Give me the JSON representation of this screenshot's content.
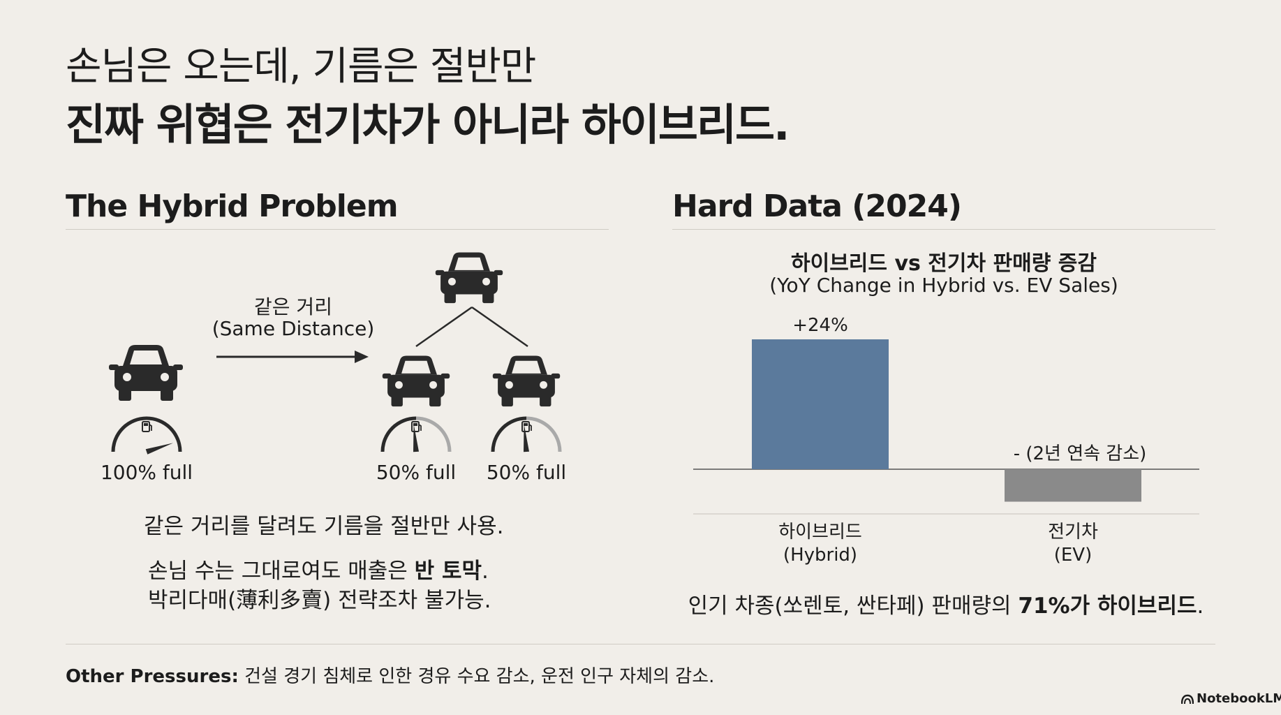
{
  "header": {
    "title_line1": "손님은 오는데, 기름은 절반만",
    "title_line2": "진짜 위협은 전기차가 아니라 하이브리드."
  },
  "left": {
    "heading": "The Hybrid Problem",
    "arrow_label_ko": "같은 거리",
    "arrow_label_en": "(Same Distance)",
    "gauges": [
      {
        "label": "100% full",
        "level": 1.0
      },
      {
        "label": "50% full",
        "level": 0.5
      },
      {
        "label": "50% full",
        "level": 0.5
      }
    ],
    "line1": "같은 거리를 달려도 기름을 절반만 사용.",
    "line2_pre": "손님 수는 그대로여도 매출은 ",
    "line2_bold": "반 토막",
    "line2_post": ".",
    "line3": "박리다매(薄利多賣) 전략조차 불가능."
  },
  "right": {
    "heading": "Hard Data (2024)",
    "note_pre": "인기 차종(쏘렌토, 싼타페) 판매량의 ",
    "note_bold": "71%가 하이브리드",
    "note_post": "."
  },
  "chart_data": {
    "type": "bar",
    "title": "하이브리드 vs 전기차 판매량 증감",
    "subtitle": "(YoY Change in Hybrid vs. EV Sales)",
    "categories": [
      "하이브리드\n(Hybrid)",
      "전기차\n(EV)"
    ],
    "category_ko": [
      "하이브리드",
      "전기차"
    ],
    "category_en": [
      "(Hybrid)",
      "(EV)"
    ],
    "values": [
      24,
      -6
    ],
    "data_labels": [
      "+24%",
      "- (2년 연속 감소)"
    ],
    "colors": [
      "#5b7a9c",
      "#8a8a8a"
    ],
    "ylim": [
      -8,
      26
    ]
  },
  "footer": {
    "label": "Other Pressures:",
    "text": " 건설 경기 침체로 인한 경유 수요 감소, 운전 인구 자체의 감소.",
    "brand": "NotebookLM"
  }
}
